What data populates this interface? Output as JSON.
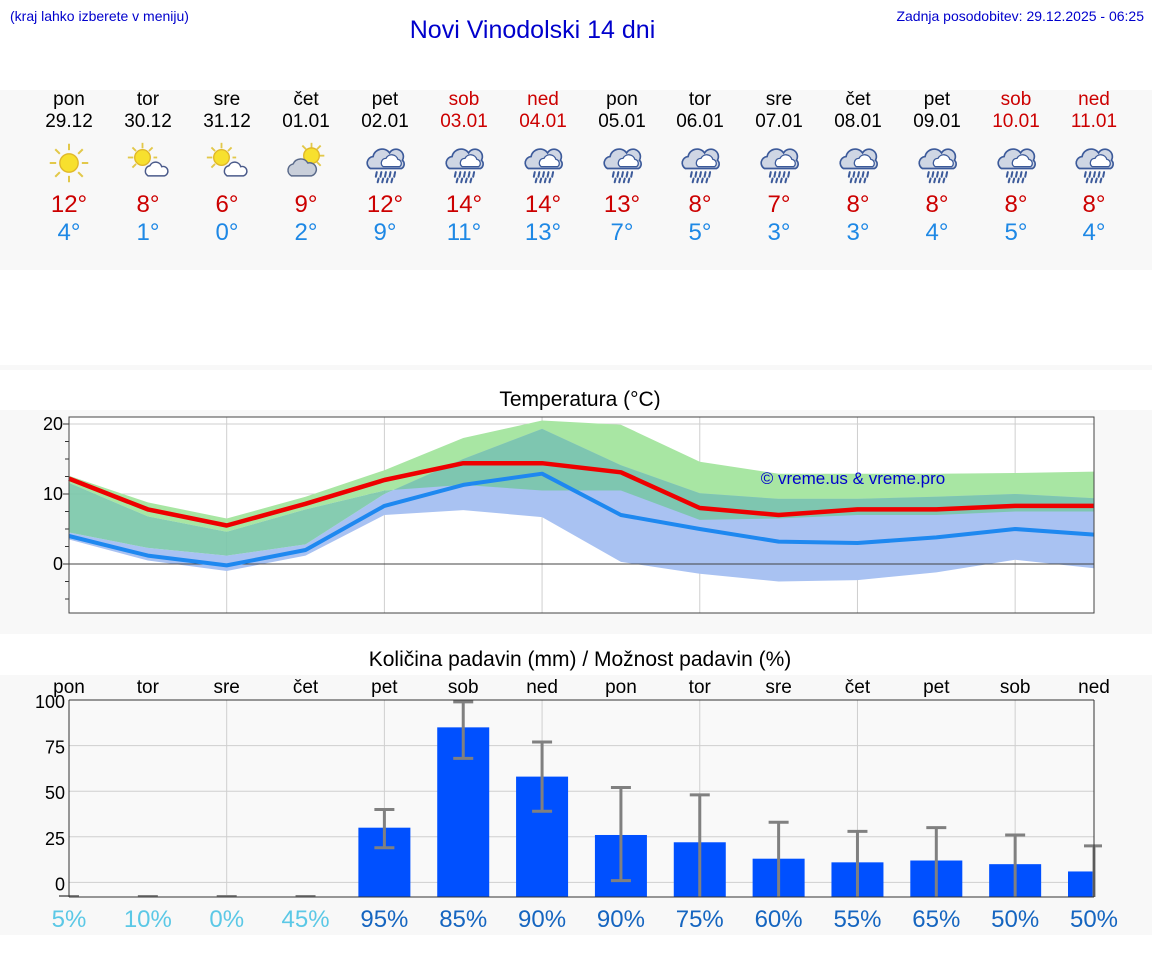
{
  "header": {
    "menu_hint": "(kraj lahko izberete v meniju)",
    "title": "Novi Vinodolski 14 dni",
    "updated": "Zadnja posodobitev: 29.12.2025 - 06:25"
  },
  "days": [
    {
      "name": "pon",
      "date": "29.12",
      "icon": "sun-icon",
      "tmax": "12°",
      "tmin": "4°",
      "weekend": false
    },
    {
      "name": "tor",
      "date": "30.12",
      "icon": "sun-cloud-icon",
      "tmax": "8°",
      "tmin": "1°",
      "weekend": false
    },
    {
      "name": "sre",
      "date": "31.12",
      "icon": "sun-cloud-icon",
      "tmax": "6°",
      "tmin": "0°",
      "weekend": false
    },
    {
      "name": "čet",
      "date": "01.01",
      "icon": "cloud-sun-icon",
      "tmax": "9°",
      "tmin": "2°",
      "weekend": false
    },
    {
      "name": "pet",
      "date": "02.01",
      "icon": "rain-cloud-icon",
      "tmax": "12°",
      "tmin": "9°",
      "weekend": false
    },
    {
      "name": "sob",
      "date": "03.01",
      "icon": "rain-cloud-icon",
      "tmax": "14°",
      "tmin": "11°",
      "weekend": true
    },
    {
      "name": "ned",
      "date": "04.01",
      "icon": "rain-cloud-icon",
      "tmax": "14°",
      "tmin": "13°",
      "weekend": true
    },
    {
      "name": "pon",
      "date": "05.01",
      "icon": "rain-cloud-icon",
      "tmax": "13°",
      "tmin": "7°",
      "weekend": false
    },
    {
      "name": "tor",
      "date": "06.01",
      "icon": "rain-cloud-icon",
      "tmax": "8°",
      "tmin": "5°",
      "weekend": false
    },
    {
      "name": "sre",
      "date": "07.01",
      "icon": "rain-cloud-icon",
      "tmax": "7°",
      "tmin": "3°",
      "weekend": false
    },
    {
      "name": "čet",
      "date": "08.01",
      "icon": "rain-cloud-icon",
      "tmax": "8°",
      "tmin": "3°",
      "weekend": false
    },
    {
      "name": "pet",
      "date": "09.01",
      "icon": "rain-cloud-icon",
      "tmax": "8°",
      "tmin": "4°",
      "weekend": false
    },
    {
      "name": "sob",
      "date": "10.01",
      "icon": "rain-cloud-icon",
      "tmax": "8°",
      "tmin": "5°",
      "weekend": true
    },
    {
      "name": "ned",
      "date": "11.01",
      "icon": "rain-cloud-icon",
      "tmax": "8°",
      "tmin": "4°",
      "weekend": true
    }
  ],
  "colors": {
    "title": "#0000cc",
    "tmax": "#cc0000",
    "tmin": "#1e88e5",
    "max_band": "#a8e6a3",
    "min_band": "#a9c2f2",
    "overlap": "#79c7a9",
    "max_line": "#ee0000",
    "min_line": "#1e88f0",
    "bar": "#0050ff",
    "whisker": "#808080",
    "prob_low": "#5bc8e6",
    "prob_high": "#1565c0"
  },
  "chart_data": [
    {
      "type": "line",
      "title": "Temperatura (°C)",
      "watermark": "© vreme.us & vreme.pro",
      "x": [
        "29.12",
        "30.12",
        "31.12",
        "01.01",
        "02.01",
        "03.01",
        "04.01",
        "05.01",
        "06.01",
        "07.01",
        "08.01",
        "09.01",
        "10.01",
        "11.01"
      ],
      "ylim": [
        -7,
        21
      ],
      "yticks": [
        0,
        10,
        20
      ],
      "series": [
        {
          "name": "max",
          "values": [
            12.2,
            7.8,
            5.5,
            8.6,
            12,
            14.4,
            14.4,
            13.1,
            8,
            7,
            7.8,
            7.8,
            8.3,
            8.3
          ]
        },
        {
          "name": "min",
          "values": [
            4,
            1.2,
            -0.2,
            2,
            8.3,
            11.3,
            12.9,
            7,
            5,
            3.2,
            3,
            3.8,
            5,
            4.2
          ]
        },
        {
          "name": "max_range_low",
          "values": [
            11.6,
            6.8,
            4.6,
            7.8,
            10.5,
            11.3,
            10.5,
            10.5,
            6.3,
            6.5,
            7,
            7,
            7.5,
            7.5
          ]
        },
        {
          "name": "max_range_high",
          "values": [
            12.6,
            8.8,
            6.5,
            9.6,
            13.4,
            18,
            20.5,
            19.9,
            14.6,
            12.9,
            12.9,
            12.9,
            13,
            13.2
          ]
        },
        {
          "name": "min_range_low",
          "values": [
            3.5,
            0.5,
            -1,
            1.2,
            7,
            7.7,
            6.7,
            0.3,
            -1.4,
            -2.5,
            -2.3,
            -1.2,
            0.6,
            -0.6
          ]
        },
        {
          "name": "min_range_high",
          "values": [
            4.5,
            2.3,
            1.2,
            2.8,
            10,
            15,
            19.3,
            14.1,
            10.1,
            9.3,
            9.3,
            9.6,
            10,
            9.4
          ]
        }
      ]
    },
    {
      "type": "bar",
      "title": "Količina padavin (mm) / Možnost padavin (%)",
      "categories": [
        "pon",
        "tor",
        "sre",
        "čet",
        "pet",
        "sob",
        "ned",
        "pon",
        "tor",
        "sre",
        "čet",
        "pet",
        "sob",
        "ned"
      ],
      "ylim": [
        -8,
        100
      ],
      "yticks": [
        0,
        25,
        50,
        75,
        100
      ],
      "values": [
        0,
        0,
        0,
        0,
        30,
        85,
        58,
        26,
        22,
        13,
        11,
        12,
        10,
        6
      ],
      "error_low": [
        0,
        0,
        0,
        0,
        19,
        68,
        39,
        1,
        0,
        0,
        0,
        0,
        0,
        0
      ],
      "error_high": [
        0,
        0,
        0,
        0,
        40,
        99,
        77,
        52,
        48,
        33,
        28,
        30,
        26,
        20
      ],
      "probability": [
        "5%",
        "10%",
        "0%",
        "45%",
        "95%",
        "85%",
        "90%",
        "90%",
        "75%",
        "60%",
        "55%",
        "65%",
        "50%",
        "50%"
      ]
    }
  ]
}
